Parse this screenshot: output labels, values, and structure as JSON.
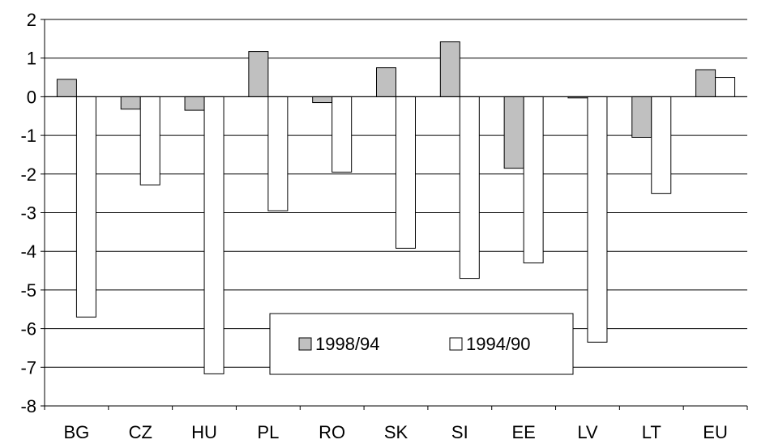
{
  "chart_data": {
    "type": "bar",
    "title": "",
    "xlabel": "",
    "ylabel": "",
    "categories": [
      "BG",
      "CZ",
      "HU",
      "PL",
      "RO",
      "SK",
      "SI",
      "EE",
      "LV",
      "LT",
      "EU"
    ],
    "series": [
      {
        "name": "1998/94",
        "color": "#c0c0c0",
        "values": [
          0.45,
          -0.32,
          -0.35,
          1.17,
          -0.15,
          0.75,
          1.42,
          -1.85,
          -0.03,
          -1.05,
          0.7
        ]
      },
      {
        "name": "1994/90",
        "color": "#ffffff",
        "values": [
          -5.7,
          -2.28,
          -7.17,
          -2.95,
          -1.95,
          -3.92,
          -4.7,
          -4.3,
          -6.35,
          -2.5,
          0.5
        ]
      }
    ],
    "ylim": [
      -8,
      2
    ],
    "yticks": [
      2,
      1,
      0,
      -1,
      -2,
      -3,
      -4,
      -5,
      -6,
      -7,
      -8
    ],
    "grid": true,
    "legend_position": "bottom-center"
  }
}
